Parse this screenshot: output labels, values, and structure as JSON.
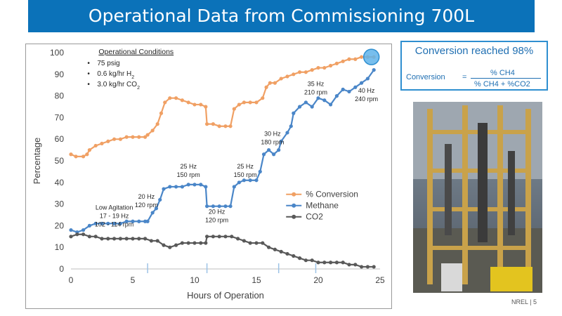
{
  "slide": {
    "title": "Operational Data from Commissioning 700L",
    "footer": "NREL   |   5"
  },
  "callout": {
    "title": "Conversion reached 98%",
    "formula_label": "Conversion",
    "equals": "=",
    "numerator": "% CH4",
    "denominator": "% CH4 + %CO2"
  },
  "conditions": {
    "heading": "Operational Conditions",
    "items": [
      "75 psig",
      "0.6 kg/hr H",
      "3.0 kg/hr CO"
    ],
    "subscripts": [
      "",
      "2",
      "2"
    ]
  },
  "annotations": [
    {
      "lines": [
        "Low Agitation",
        "17 - 19 Hz",
        "102 - 114 rpm"
      ],
      "x": 3.5,
      "y": 27.5
    },
    {
      "lines": [
        "20 Hz",
        "120 rpm"
      ],
      "x": 6.1,
      "y": 32.5
    },
    {
      "lines": [
        "25 Hz",
        "150 rpm"
      ],
      "x": 9.5,
      "y": 46.5
    },
    {
      "lines": [
        "20 Hz",
        "120 rpm"
      ],
      "x": 11.8,
      "y": 25.5
    },
    {
      "lines": [
        "25 Hz",
        "150 rpm"
      ],
      "x": 14.1,
      "y": 46.5
    },
    {
      "lines": [
        "30 Hz",
        "180 rpm"
      ],
      "x": 16.3,
      "y": 61.5
    },
    {
      "lines": [
        "35 Hz",
        "210 rpm"
      ],
      "x": 19.8,
      "y": 84.5
    },
    {
      "lines": [
        "40 Hz",
        "240 rpm"
      ],
      "x": 23.9,
      "y": 81.5
    }
  ],
  "colors": {
    "conversion": "#f0a064",
    "methane": "#4a86c8",
    "co2": "#595959",
    "axis_text": "#404040",
    "marker_lines": "#9dc3e6",
    "highlight": "#2f8fd0"
  },
  "chart_data": {
    "type": "scatter",
    "xlabel": "Hours of Operation",
    "ylabel": "Percentage",
    "xlim": [
      0,
      25
    ],
    "ylim": [
      0,
      100
    ],
    "xticks": [
      0,
      5,
      10,
      15,
      20,
      25
    ],
    "yticks": [
      0,
      10,
      20,
      30,
      40,
      50,
      60,
      70,
      80,
      90,
      100
    ],
    "grid": false,
    "legend_position": "right-middle",
    "change_markers_x": [
      6.2,
      11.0,
      16.8,
      19.8
    ],
    "highlight_point": {
      "x": 24.3,
      "y": 98
    },
    "series": [
      {
        "name": "% Conversion",
        "x": [
          0,
          0.4,
          1.0,
          1.3,
          1.5,
          2.0,
          2.5,
          3.0,
          3.5,
          4.0,
          4.5,
          5.0,
          5.5,
          6.0,
          6.2,
          6.6,
          7.0,
          7.3,
          7.6,
          8.0,
          8.5,
          9.0,
          9.5,
          10.0,
          10.5,
          10.9,
          11.0,
          11.5,
          12.0,
          12.5,
          12.9,
          13.2,
          13.6,
          14.0,
          14.5,
          15.0,
          15.5,
          15.8,
          16.1,
          16.5,
          17.0,
          17.5,
          18.0,
          18.5,
          19.0,
          19.5,
          20.0,
          20.5,
          21.0,
          21.5,
          22.0,
          22.5,
          23.0,
          23.5,
          24.0,
          24.5
        ],
        "y": [
          53,
          52,
          52,
          53,
          55,
          57,
          58,
          59,
          60,
          60,
          61,
          61,
          61,
          61,
          62,
          64,
          67,
          72,
          77,
          79,
          79,
          78,
          77,
          76,
          76,
          75,
          67,
          67,
          66,
          66,
          66,
          74,
          76,
          77,
          77,
          77,
          79,
          84,
          86,
          86,
          88,
          89,
          90,
          91,
          91,
          92,
          93,
          93,
          94,
          95,
          96,
          97,
          97,
          98,
          98,
          98
        ]
      },
      {
        "name": "Methane",
        "x": [
          0,
          0.5,
          1.0,
          1.5,
          2.0,
          2.5,
          3.0,
          3.5,
          4.0,
          4.5,
          5.0,
          5.5,
          6.0,
          6.2,
          6.6,
          6.9,
          7.2,
          7.5,
          8.0,
          8.5,
          9.0,
          9.5,
          10.0,
          10.5,
          10.9,
          11.0,
          11.5,
          12.0,
          12.5,
          12.9,
          13.2,
          13.6,
          14.0,
          14.5,
          15.0,
          15.3,
          15.6,
          16.0,
          16.4,
          16.8,
          17.0,
          17.5,
          17.8,
          18.0,
          18.5,
          19.0,
          19.5,
          20.0,
          20.5,
          21.0,
          21.5,
          22.0,
          22.5,
          23.0,
          23.5,
          24.0,
          24.5
        ],
        "y": [
          18,
          17,
          18,
          20,
          21,
          21,
          21,
          21,
          21,
          22,
          22,
          22,
          22,
          22,
          26,
          28,
          32,
          37,
          38,
          38,
          38,
          39,
          39,
          39,
          38,
          29,
          29,
          29,
          29,
          29,
          38,
          40,
          41,
          41,
          41,
          45,
          53,
          55,
          53,
          55,
          59,
          63,
          66,
          72,
          75,
          77,
          75,
          79,
          78,
          76,
          80,
          83,
          82,
          84,
          86,
          88,
          92
        ]
      },
      {
        "name": "CO2",
        "x": [
          0,
          0.5,
          1.0,
          1.5,
          2.0,
          2.5,
          3.0,
          3.5,
          4.0,
          4.5,
          5.0,
          5.5,
          6.0,
          6.5,
          7.0,
          7.5,
          8.0,
          8.5,
          9.0,
          9.5,
          10.0,
          10.5,
          10.9,
          11.0,
          11.5,
          12.0,
          12.5,
          13.0,
          13.5,
          14.0,
          14.5,
          15.0,
          15.5,
          16.0,
          16.5,
          17.0,
          17.5,
          18.0,
          18.5,
          19.0,
          19.5,
          20.0,
          20.5,
          21.0,
          21.5,
          22.0,
          22.5,
          23.0,
          23.5,
          24.0,
          24.5
        ],
        "y": [
          15,
          16,
          16,
          15,
          15,
          14,
          14,
          14,
          14,
          14,
          14,
          14,
          14,
          13,
          13,
          11,
          10,
          11,
          12,
          12,
          12,
          12,
          12,
          15,
          15,
          15,
          15,
          15,
          14,
          13,
          12,
          12,
          12,
          10,
          9,
          8,
          7,
          6,
          5,
          4,
          4,
          3,
          3,
          3,
          3,
          3,
          2,
          2,
          1,
          1,
          1
        ]
      }
    ]
  }
}
